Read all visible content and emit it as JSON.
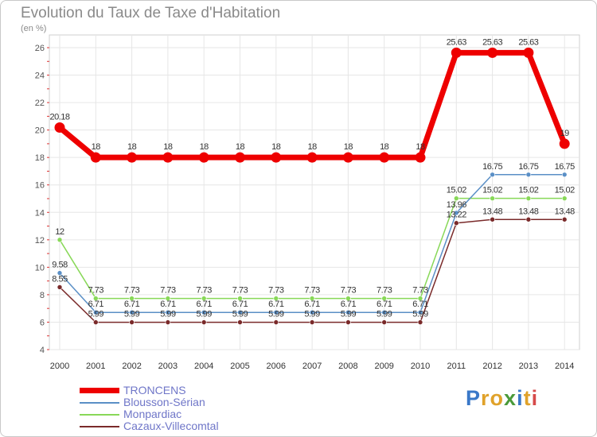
{
  "title": "Evolution du Taux de Taxe d'Habitation",
  "unit": "(en %)",
  "logo": {
    "letters": [
      "P",
      "r",
      "o",
      "x",
      "i",
      "t",
      "i"
    ],
    "colors": [
      "#3a78c8",
      "#e0a22a",
      "#e0a22a",
      "#4a9a3a",
      "#3a78c8",
      "#e0a22a",
      "#d64a4a"
    ]
  },
  "chart_data": {
    "type": "line",
    "title": "Evolution du Taux de Taxe d'Habitation",
    "ylabel": "(en %)",
    "xlabel": "",
    "x": [
      "2000",
      "2001",
      "2002",
      "2003",
      "2004",
      "2005",
      "2006",
      "2007",
      "2008",
      "2009",
      "2010",
      "2011",
      "2012",
      "2013",
      "2014"
    ],
    "ylim": [
      4,
      26
    ],
    "yticks": [
      "4",
      "6",
      "8",
      "10",
      "12",
      "14",
      "16",
      "18",
      "20",
      "22",
      "24",
      "26"
    ],
    "legend_position": "bottom-left",
    "series": [
      {
        "name": "TRONCENS",
        "color": "#ee0000",
        "width": 7,
        "values": [
          20.18,
          18,
          18,
          18,
          18,
          18,
          18,
          18,
          18,
          18,
          18,
          25.63,
          25.63,
          25.63,
          19
        ],
        "labels": [
          "20.18",
          "18",
          "18",
          "18",
          "18",
          "18",
          "18",
          "18",
          "18",
          "18",
          "18",
          "25.63",
          "25.63",
          "25.63",
          "19"
        ]
      },
      {
        "name": "Blousson-Sérian",
        "color": "#5a8fc6",
        "width": 1.5,
        "values": [
          9.58,
          6.71,
          6.71,
          6.71,
          6.71,
          6.71,
          6.71,
          6.71,
          6.71,
          6.71,
          6.71,
          13.96,
          16.75,
          16.75,
          16.75
        ],
        "labels": [
          "9.58",
          "6.71",
          "6.71",
          "6.71",
          "6.71",
          "6.71",
          "6.71",
          "6.71",
          "6.71",
          "6.71",
          "6.71",
          "13.96",
          "16.75",
          "16.75",
          "16.75"
        ]
      },
      {
        "name": "Monpardiac",
        "color": "#88d858",
        "width": 1.5,
        "values": [
          12,
          7.73,
          7.73,
          7.73,
          7.73,
          7.73,
          7.73,
          7.73,
          7.73,
          7.73,
          7.73,
          15.02,
          15.02,
          15.02,
          15.02
        ],
        "labels": [
          "12",
          "7.73",
          "7.73",
          "7.73",
          "7.73",
          "7.73",
          "7.73",
          "7.73",
          "7.73",
          "7.73",
          "7.73",
          "15.02",
          "15.02",
          "15.02",
          "15.02"
        ]
      },
      {
        "name": "Cazaux-Villecomtal",
        "color": "#7a2a2a",
        "width": 1.5,
        "values": [
          8.55,
          5.99,
          5.99,
          5.99,
          5.99,
          5.99,
          5.99,
          5.99,
          5.99,
          5.99,
          5.99,
          13.22,
          13.48,
          13.48,
          13.48
        ],
        "labels": [
          "8.55",
          "5.99",
          "5.99",
          "5.99",
          "5.99",
          "5.99",
          "5.99",
          "5.99",
          "5.99",
          "5.99",
          "5.99",
          "13.22",
          "13.48",
          "13.48",
          "13.48"
        ]
      }
    ]
  }
}
